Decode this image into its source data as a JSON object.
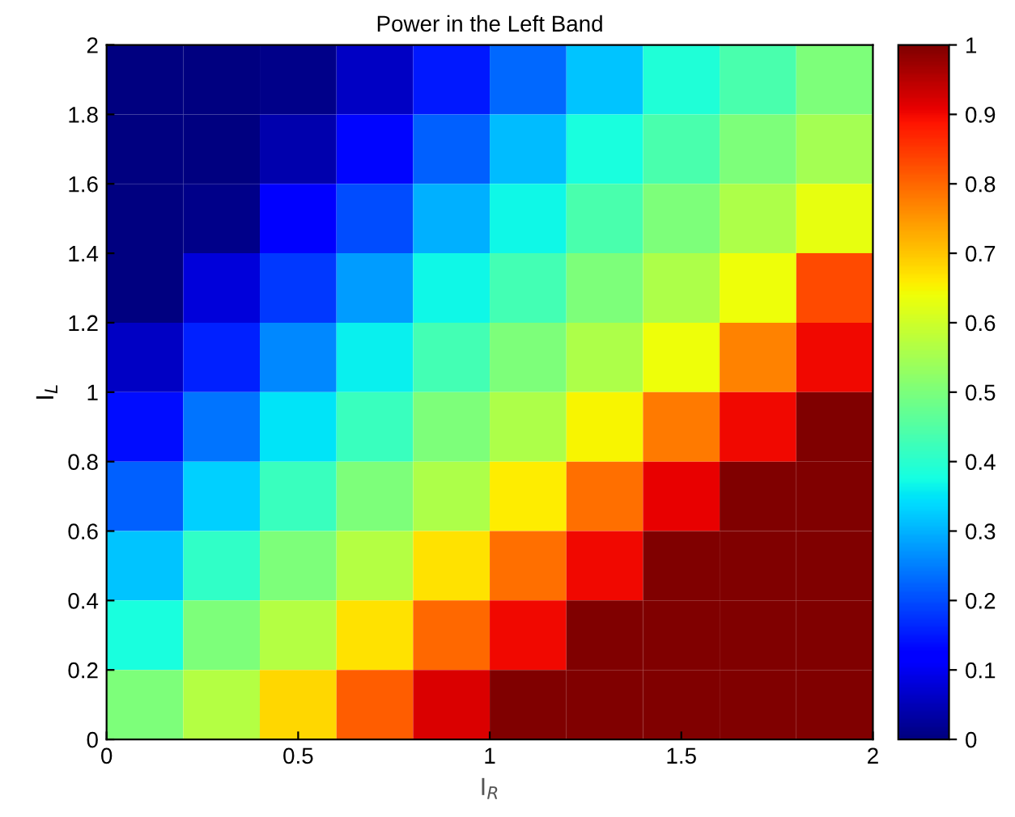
{
  "chart_data": {
    "type": "heatmap",
    "title": "Power in the Left Band",
    "xlabel": "I$_{R}$",
    "ylabel": "I$_{L}$",
    "x": [
      0.1,
      0.3,
      0.5,
      0.7,
      0.9,
      1.1,
      1.3,
      1.5,
      1.7,
      1.9
    ],
    "y": [
      1.9,
      1.7,
      1.5,
      1.3,
      1.1,
      0.9,
      0.7,
      0.5,
      0.3,
      0.1
    ],
    "cells": [
      [
        0,
        0,
        0.01,
        0.06,
        0.15,
        0.23,
        0.32,
        0.39,
        0.44,
        0.5
      ],
      [
        0,
        0,
        0.04,
        0.13,
        0.22,
        0.31,
        0.38,
        0.44,
        0.5,
        0.55
      ],
      [
        0,
        0.01,
        0.11,
        0.2,
        0.3,
        0.37,
        0.44,
        0.5,
        0.56,
        0.63
      ],
      [
        0,
        0.08,
        0.18,
        0.28,
        0.37,
        0.43,
        0.5,
        0.56,
        0.64,
        0.83
      ],
      [
        0.06,
        0.16,
        0.26,
        0.36,
        0.43,
        0.5,
        0.56,
        0.64,
        0.77,
        0.9
      ],
      [
        0.14,
        0.24,
        0.35,
        0.42,
        0.5,
        0.56,
        0.65,
        0.78,
        0.9,
        1
      ],
      [
        0.22,
        0.33,
        0.42,
        0.5,
        0.56,
        0.66,
        0.79,
        0.91,
        1,
        1
      ],
      [
        0.32,
        0.41,
        0.5,
        0.57,
        0.67,
        0.79,
        0.9,
        1,
        1,
        1
      ],
      [
        0.38,
        0.5,
        0.57,
        0.67,
        0.8,
        0.9,
        1,
        1,
        1,
        1
      ],
      [
        0.5,
        0.57,
        0.68,
        0.81,
        0.92,
        1,
        1,
        1,
        1,
        1
      ]
    ],
    "xlim": [
      0,
      2
    ],
    "xticks": [
      0,
      0.5,
      1,
      1.5,
      2
    ],
    "ylim": [
      0,
      2
    ],
    "yticks": [
      0,
      0.2,
      0.4,
      0.6,
      0.8,
      1,
      1.2,
      1.4,
      1.6,
      1.8,
      2
    ],
    "clim": [
      0,
      1
    ],
    "cticks": [
      0,
      0.1,
      0.2,
      0.3,
      0.4,
      0.5,
      0.6,
      0.7,
      0.8,
      0.9,
      1
    ],
    "grid": false
  }
}
